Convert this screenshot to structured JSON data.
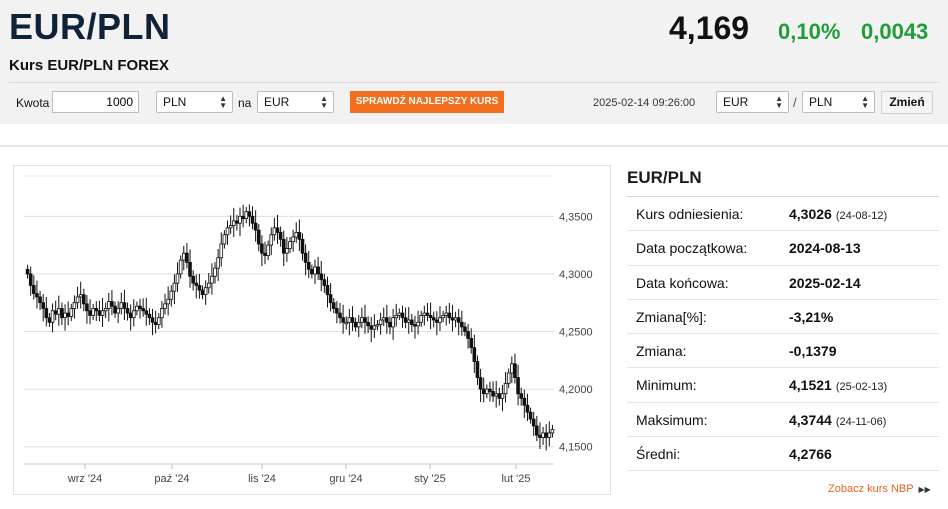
{
  "header": {
    "title": "EUR/PLN",
    "subtitle": "Kurs EUR/PLN FOREX",
    "rate": "4,169",
    "change_pct": "0,10%",
    "change_abs": "0,0043"
  },
  "converter": {
    "amount_label": "Kwota",
    "amount_value": "1000",
    "from_currency": "PLN",
    "to_label": "na",
    "to_currency": "EUR",
    "best_rate_button": "SPRAWDŹ NAJLEPSZY KURS",
    "timestamp": "2025-02-14 09:26:00",
    "pair_base": "EUR",
    "pair_separator": "/",
    "pair_quote": "PLN",
    "change_button": "Zmień"
  },
  "stats": {
    "title": "EUR/PLN",
    "rows": [
      {
        "label": "Kurs odniesienia:",
        "value": "4,3026",
        "date": "(24-08-12)"
      },
      {
        "label": "Data początkowa:",
        "value": "2024-08-13",
        "date": ""
      },
      {
        "label": "Data końcowa:",
        "value": "2025-02-14",
        "date": ""
      },
      {
        "label": "Zmiana[%]:",
        "value": "-3,21%",
        "date": ""
      },
      {
        "label": "Zmiana:",
        "value": "-0,1379",
        "date": ""
      },
      {
        "label": "Minimum:",
        "value": "4,1521",
        "date": "(25-02-13)"
      },
      {
        "label": "Maksimum:",
        "value": "4,3744",
        "date": "(24-11-06)"
      },
      {
        "label": "Średni:",
        "value": "4,2766",
        "date": ""
      }
    ],
    "nbp_link": "Zobacz kurs NBP"
  },
  "chart_data": {
    "type": "line",
    "style": "candlestick",
    "x_tick_labels": [
      "wrz '24",
      "paź '24",
      "lis '24",
      "gru '24",
      "sty '25",
      "lut '25"
    ],
    "y_tick_labels": [
      "4,1500",
      "4,2000",
      "4,2500",
      "4,3000",
      "4,3500"
    ],
    "ylim": [
      4.135,
      4.385
    ],
    "grid": true,
    "series": [
      {
        "values": [
          4.3,
          4.29,
          4.283,
          4.28,
          4.275,
          4.27,
          4.262,
          4.258,
          4.268,
          4.265,
          4.27,
          4.262,
          4.266,
          4.263,
          4.27,
          4.275,
          4.28,
          4.282,
          4.274,
          4.268,
          4.264,
          4.27,
          4.268,
          4.264,
          4.268,
          4.27,
          4.276,
          4.272,
          4.266,
          4.27,
          4.275,
          4.27,
          4.266,
          4.262,
          4.268,
          4.272,
          4.27,
          4.268,
          4.265,
          4.262,
          4.258,
          4.256,
          4.262,
          4.27,
          4.274,
          4.278,
          4.285,
          4.292,
          4.3,
          4.312,
          4.318,
          4.31,
          4.298,
          4.292,
          4.29,
          4.286,
          4.282,
          4.288,
          4.292,
          4.298,
          4.305,
          4.314,
          4.326,
          4.334,
          4.34,
          4.342,
          4.346,
          4.344,
          4.35,
          4.348,
          4.354,
          4.35,
          4.344,
          4.338,
          4.326,
          4.318,
          4.316,
          4.325,
          4.334,
          4.34,
          4.336,
          4.33,
          4.318,
          4.322,
          4.328,
          4.332,
          4.336,
          4.33,
          4.318,
          4.31,
          4.304,
          4.3,
          4.306,
          4.3,
          4.295,
          4.29,
          4.282,
          4.275,
          4.27,
          4.266,
          4.262,
          4.258,
          4.258,
          4.262,
          4.258,
          4.254,
          4.258,
          4.262,
          4.258,
          4.255,
          4.252,
          4.255,
          4.256,
          4.26,
          4.262,
          4.258,
          4.254,
          4.262,
          4.264,
          4.266,
          4.262,
          4.258,
          4.26,
          4.256,
          4.255,
          4.258,
          4.264,
          4.266,
          4.264,
          4.262,
          4.26,
          4.258,
          4.262,
          4.264,
          4.266,
          4.262,
          4.26,
          4.262,
          4.258,
          4.254,
          4.25,
          4.244,
          4.236,
          4.224,
          4.21,
          4.2,
          4.196,
          4.2,
          4.198,
          4.194,
          4.196,
          4.192,
          4.196,
          4.205,
          4.214,
          4.222,
          4.21,
          4.196,
          4.192,
          4.186,
          4.18,
          4.174,
          4.168,
          4.16,
          4.158,
          4.162,
          4.158,
          4.162,
          4.165
        ]
      }
    ]
  }
}
